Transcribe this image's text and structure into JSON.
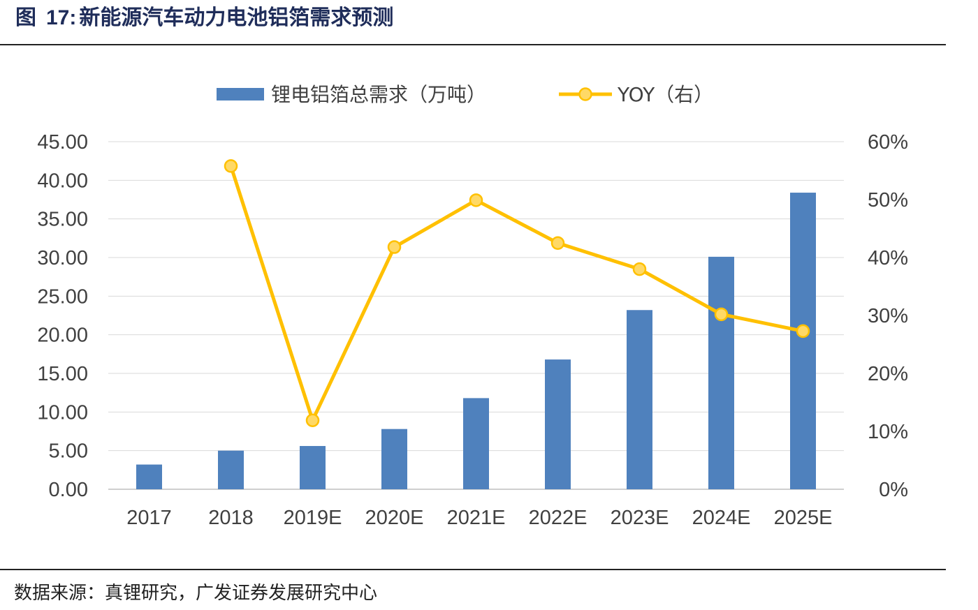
{
  "figure": {
    "label": "图",
    "number": "17:",
    "title": "新能源汽车动力电池铝箔需求预测",
    "source": "数据来源：真锂研究，广发证券发展研究中心"
  },
  "chart_data": {
    "type": "bar",
    "categories": [
      "2017",
      "2018",
      "2019E",
      "2020E",
      "2021E",
      "2022E",
      "2023E",
      "2024E",
      "2025E"
    ],
    "series": [
      {
        "name": "锂电铝箔总需求（万吨）",
        "type": "bar",
        "axis": "left",
        "color": "#4f81bd",
        "values": [
          3.2,
          5.0,
          5.6,
          7.8,
          11.8,
          16.8,
          23.2,
          30.1,
          38.4
        ]
      },
      {
        "name": "YOY（右）",
        "type": "line",
        "axis": "right",
        "color": "#ffc000",
        "marker_fill": "#ffd966",
        "values": [
          null,
          55.8,
          11.9,
          41.8,
          49.9,
          42.5,
          38.0,
          30.2,
          27.3
        ]
      }
    ],
    "left_axis": {
      "ylim": [
        0,
        45
      ],
      "ticks": [
        "0.00",
        "5.00",
        "10.00",
        "15.00",
        "20.00",
        "25.00",
        "30.00",
        "35.00",
        "40.00",
        "45.00"
      ]
    },
    "right_axis": {
      "ylim": [
        0,
        60
      ],
      "ticks": [
        "0%",
        "10%",
        "20%",
        "30%",
        "40%",
        "50%",
        "60%"
      ]
    },
    "grid": true,
    "legend": "top-center"
  }
}
